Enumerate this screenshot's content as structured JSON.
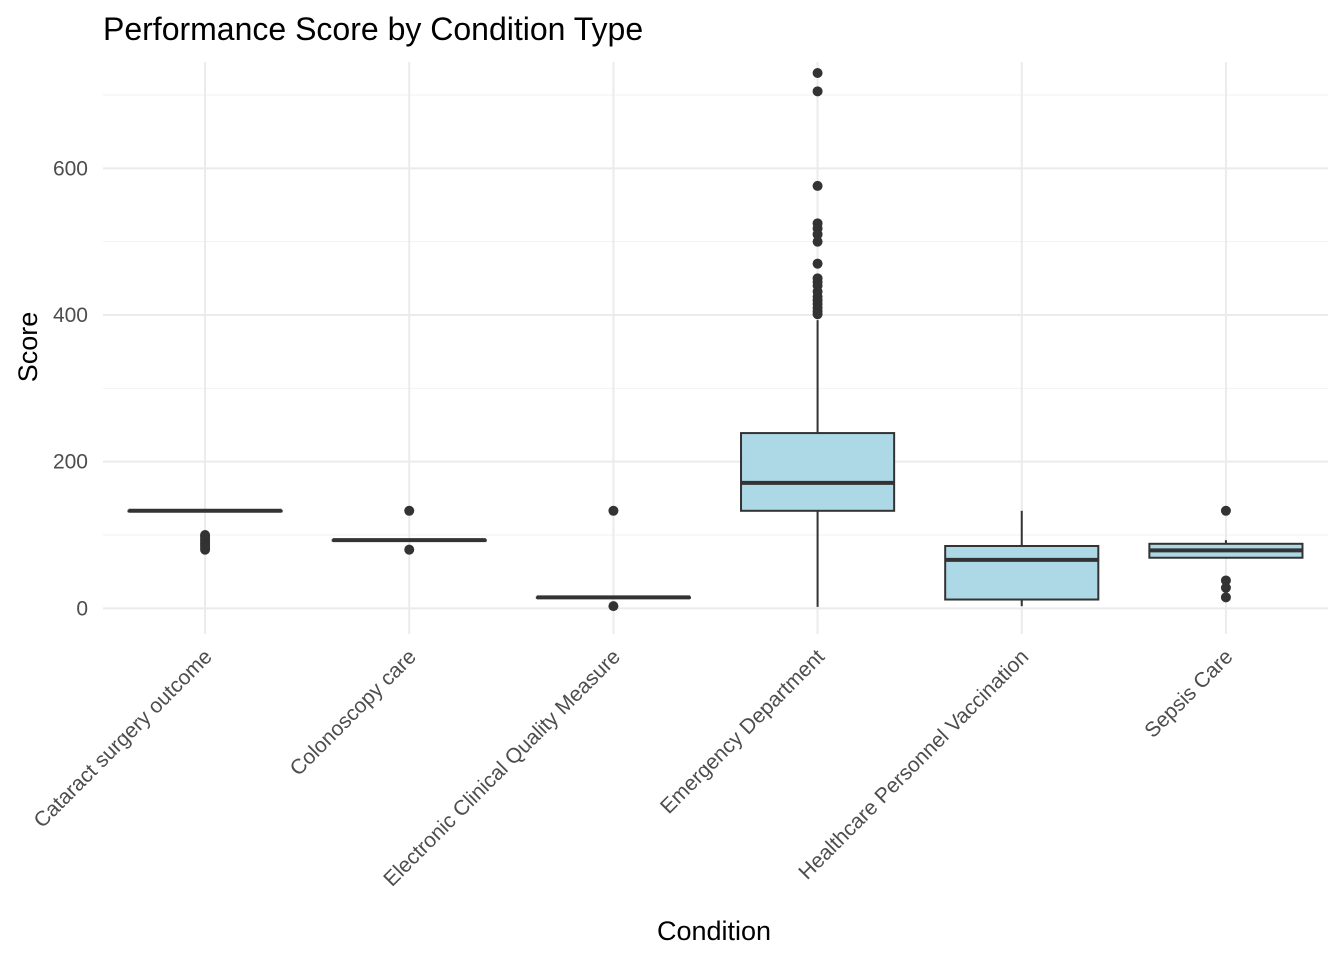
{
  "chart_data": {
    "type": "boxplot",
    "title": "Performance Score by Condition Type",
    "xlabel": "Condition",
    "ylabel": "Score",
    "ylim": [
      -35,
      745
    ],
    "y_ticks": [
      0,
      200,
      400,
      600
    ],
    "y_tick_labels": [
      "0",
      "200",
      "400",
      "600"
    ],
    "categories": [
      "Cataract surgery outcome",
      "Colonoscopy care",
      "Electronic Clinical Quality Measure",
      "Emergency Department",
      "Healthcare Personnel Vaccination",
      "Sepsis Care"
    ],
    "box_color": "#add8e6",
    "line_color": "#333333",
    "boxes": [
      {
        "min": 133,
        "q1": 133,
        "median": 133,
        "q3": 133,
        "max": 133,
        "outliers": [
          80,
          83,
          86,
          89,
          92,
          95,
          98,
          100
        ]
      },
      {
        "min": 93,
        "q1": 93,
        "median": 93,
        "q3": 93,
        "max": 93,
        "outliers": [
          80,
          133
        ]
      },
      {
        "min": 15,
        "q1": 15,
        "median": 15,
        "q3": 15,
        "max": 15,
        "outliers": [
          3,
          133
        ]
      },
      {
        "min": 2,
        "q1": 133,
        "median": 171,
        "q3": 239,
        "max": 393,
        "outliers": [
          401,
          405,
          410,
          415,
          420,
          425,
          432,
          440,
          445,
          450,
          470,
          500,
          510,
          518,
          525,
          576,
          705,
          730
        ]
      },
      {
        "min": 3,
        "q1": 12,
        "median": 66,
        "q3": 85,
        "max": 133,
        "outliers": []
      },
      {
        "min": 69,
        "q1": 69,
        "median": 79,
        "q3": 88,
        "max": 93,
        "outliers": [
          15,
          28,
          38,
          133
        ]
      }
    ]
  }
}
